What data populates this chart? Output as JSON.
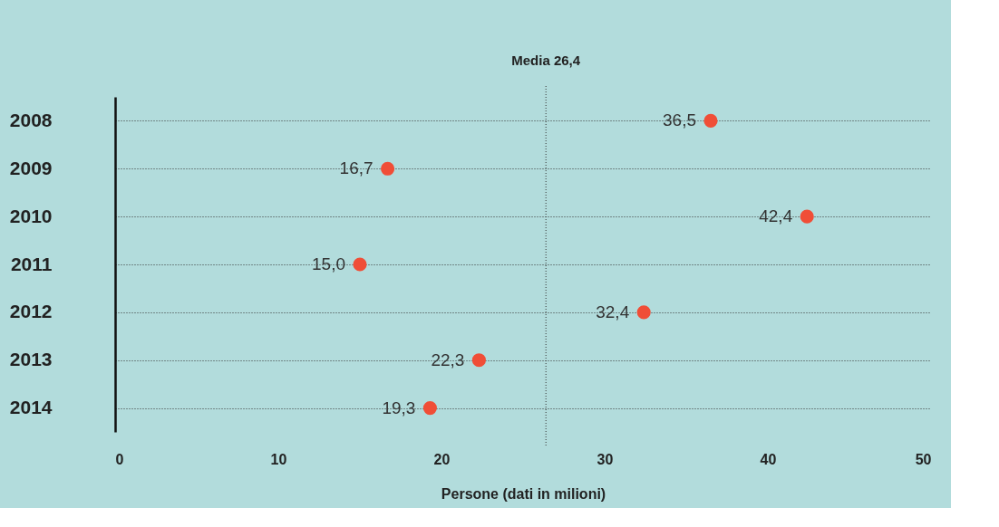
{
  "chart_data": {
    "type": "scatter",
    "orientation": "horizontal",
    "xlabel": "Persone (dati in milioni)",
    "categories": [
      "2008",
      "2009",
      "2010",
      "2011",
      "2012",
      "2013",
      "2014"
    ],
    "series": [
      {
        "color": "#f04e37",
        "values": [
          36.5,
          16.7,
          42.4,
          15.0,
          32.4,
          22.3,
          19.3
        ],
        "value_labels": [
          "36,5",
          "16,7",
          "42,4",
          "15,0",
          "32,4",
          "22,3",
          "19,3"
        ]
      }
    ],
    "xlim": [
      0,
      50
    ],
    "xticks": [
      0,
      10,
      20,
      30,
      40,
      50
    ],
    "ref_lines": [
      {
        "axis": "x",
        "value": 26.4,
        "label": "Media 26,4",
        "line_style": "dotted",
        "color": "#333333"
      }
    ],
    "grid": "y",
    "marker": "circle",
    "legend": false
  }
}
